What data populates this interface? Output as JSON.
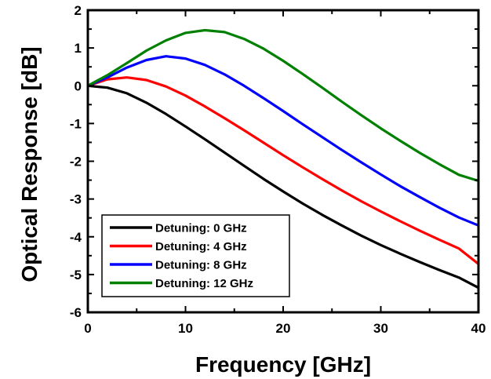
{
  "chart_data": {
    "type": "line",
    "xlabel": "Frequency [GHz]",
    "ylabel": "Optical Response [dB]",
    "xlim": [
      0,
      40
    ],
    "ylim": [
      -6,
      2
    ],
    "xticks": [
      0,
      10,
      20,
      30,
      40
    ],
    "yticks": [
      -6,
      -5,
      -4,
      -3,
      -2,
      -1,
      0,
      1,
      2
    ],
    "legend_position": "lower-left",
    "grid": false,
    "series": [
      {
        "name": "Detuning: 0 GHz",
        "color": "#000000",
        "x": [
          0,
          2,
          4,
          6,
          8,
          10,
          12,
          14,
          16,
          18,
          20,
          22,
          24,
          26,
          28,
          30,
          32,
          34,
          36,
          38,
          40
        ],
        "y": [
          0.0,
          -0.05,
          -0.2,
          -0.45,
          -0.75,
          -1.08,
          -1.42,
          -1.77,
          -2.12,
          -2.47,
          -2.8,
          -3.12,
          -3.42,
          -3.7,
          -3.97,
          -4.22,
          -4.45,
          -4.67,
          -4.88,
          -5.08,
          -5.35
        ]
      },
      {
        "name": "Detuning: 4 GHz",
        "color": "#ff0000",
        "x": [
          0,
          2,
          4,
          6,
          8,
          10,
          12,
          14,
          16,
          18,
          20,
          22,
          24,
          26,
          28,
          30,
          32,
          34,
          36,
          38,
          40
        ],
        "y": [
          0.0,
          0.17,
          0.22,
          0.15,
          -0.02,
          -0.26,
          -0.55,
          -0.86,
          -1.18,
          -1.51,
          -1.84,
          -2.16,
          -2.47,
          -2.77,
          -3.06,
          -3.33,
          -3.59,
          -3.84,
          -4.08,
          -4.31,
          -4.72
        ]
      },
      {
        "name": "Detuning: 8 GHz",
        "color": "#0000ff",
        "x": [
          0,
          2,
          4,
          6,
          8,
          10,
          12,
          14,
          16,
          18,
          20,
          22,
          24,
          26,
          28,
          30,
          32,
          34,
          36,
          38,
          40
        ],
        "y": [
          0.0,
          0.22,
          0.48,
          0.68,
          0.78,
          0.72,
          0.55,
          0.3,
          0.0,
          -0.33,
          -0.67,
          -1.02,
          -1.36,
          -1.7,
          -2.03,
          -2.35,
          -2.66,
          -2.95,
          -3.23,
          -3.49,
          -3.7
        ]
      },
      {
        "name": "Detuning: 12 GHz",
        "color": "#008000",
        "x": [
          0,
          2,
          4,
          6,
          8,
          10,
          12,
          14,
          16,
          18,
          20,
          22,
          24,
          26,
          28,
          30,
          32,
          34,
          36,
          38,
          40
        ],
        "y": [
          0.0,
          0.28,
          0.6,
          0.93,
          1.2,
          1.4,
          1.47,
          1.42,
          1.24,
          0.98,
          0.66,
          0.31,
          -0.05,
          -0.42,
          -0.78,
          -1.13,
          -1.46,
          -1.78,
          -2.08,
          -2.36,
          -2.52
        ]
      }
    ]
  }
}
